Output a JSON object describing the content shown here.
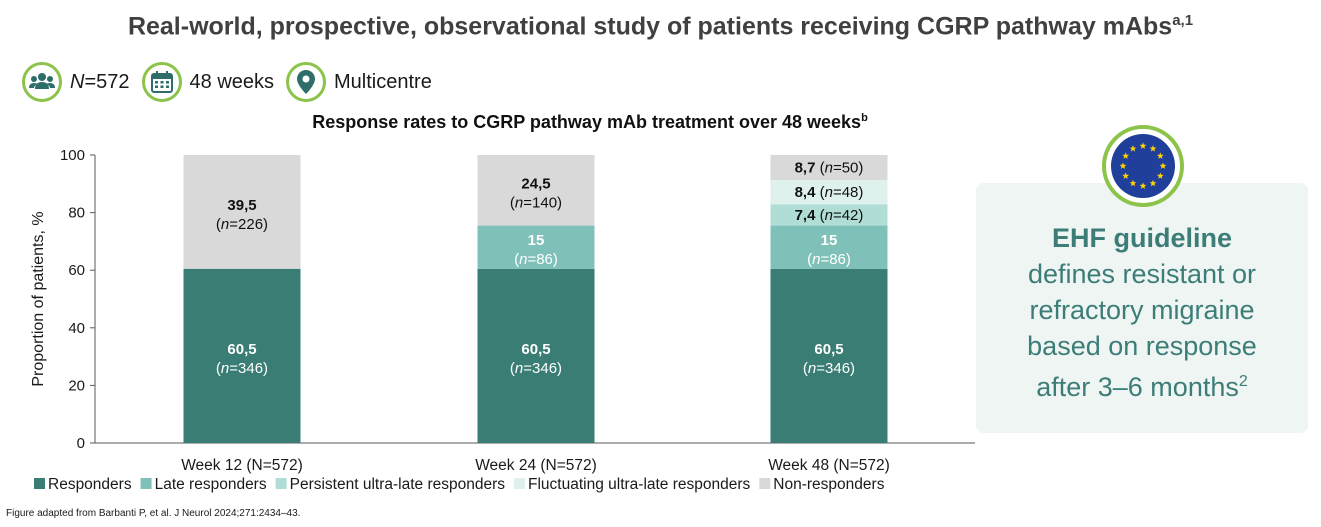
{
  "header": {
    "title": "Real-world, prospective, observational study of patients receiving CGRP pathway mAbs",
    "title_sup": "a,1"
  },
  "stats": [
    {
      "icon": "people-icon",
      "prefix": "N",
      "text": "=572"
    },
    {
      "icon": "calendar-icon",
      "prefix": "",
      "text": "48 weeks"
    },
    {
      "icon": "location-pin-icon",
      "prefix": "",
      "text": "Multicentre"
    }
  ],
  "ehf": {
    "title": "EHF guideline",
    "text": "defines resistant or refractory migraine based on response after 3–6 months",
    "sup": "2",
    "icon": "eu-flag-icon"
  },
  "source": "Figure adapted from Barbanti P, et al. J Neurol 2024;271:2434–43.",
  "colors": {
    "accent_green": "#8cc34a",
    "icon_teal": "#2e6e6a",
    "ehf_text": "#3d7d78",
    "ehf_bg": "#eef5f3"
  },
  "chart_data": {
    "type": "bar",
    "stacked": true,
    "title": "Response rates to CGRP pathway mAb treatment over 48 weeks",
    "title_sup": "b",
    "ylabel": "Proportion of patients, %",
    "xlabel": "",
    "ylim": [
      0,
      100
    ],
    "yticks": [
      0,
      20,
      40,
      60,
      80,
      100
    ],
    "grid": false,
    "legend_position": "bottom",
    "categories": [
      "Week 12 (N=572)",
      "Week 24 (N=572)",
      "Week 48 (N=572)"
    ],
    "series": [
      {
        "name": "Responders",
        "color": "#3a7d75",
        "values": [
          60.5,
          60.5,
          60.5
        ],
        "labels": [
          "60,5",
          "60,5",
          "60,5"
        ],
        "n": [
          346,
          346,
          346
        ],
        "label_style": [
          "stack",
          "stack",
          "stack"
        ]
      },
      {
        "name": "Late responders",
        "color": "#7fc1b8",
        "values": [
          0,
          15,
          15
        ],
        "labels": [
          "",
          "15",
          "15"
        ],
        "n": [
          null,
          86,
          86
        ],
        "label_style": [
          "stack",
          "stack",
          "stack"
        ]
      },
      {
        "name": "Persistent ultra-late responders",
        "color": "#b0ddd5",
        "values": [
          0,
          0,
          7.4
        ],
        "labels": [
          "",
          "",
          "7,4"
        ],
        "n": [
          null,
          null,
          42
        ],
        "label_style": [
          "inline",
          "inline",
          "inline"
        ]
      },
      {
        "name": "Fluctuating ultra-late responders",
        "color": "#dff1ed",
        "values": [
          0,
          0,
          8.4
        ],
        "labels": [
          "",
          "",
          "8,4"
        ],
        "n": [
          null,
          null,
          48
        ],
        "label_style": [
          "inline",
          "inline",
          "inline"
        ]
      },
      {
        "name": "Non-responders",
        "color": "#d9d9d9",
        "values": [
          39.5,
          24.5,
          8.7
        ],
        "labels": [
          "39,5",
          "24,5",
          "8,7"
        ],
        "n": [
          226,
          140,
          50
        ],
        "label_style": [
          "stack",
          "stack",
          "inline"
        ]
      }
    ]
  }
}
